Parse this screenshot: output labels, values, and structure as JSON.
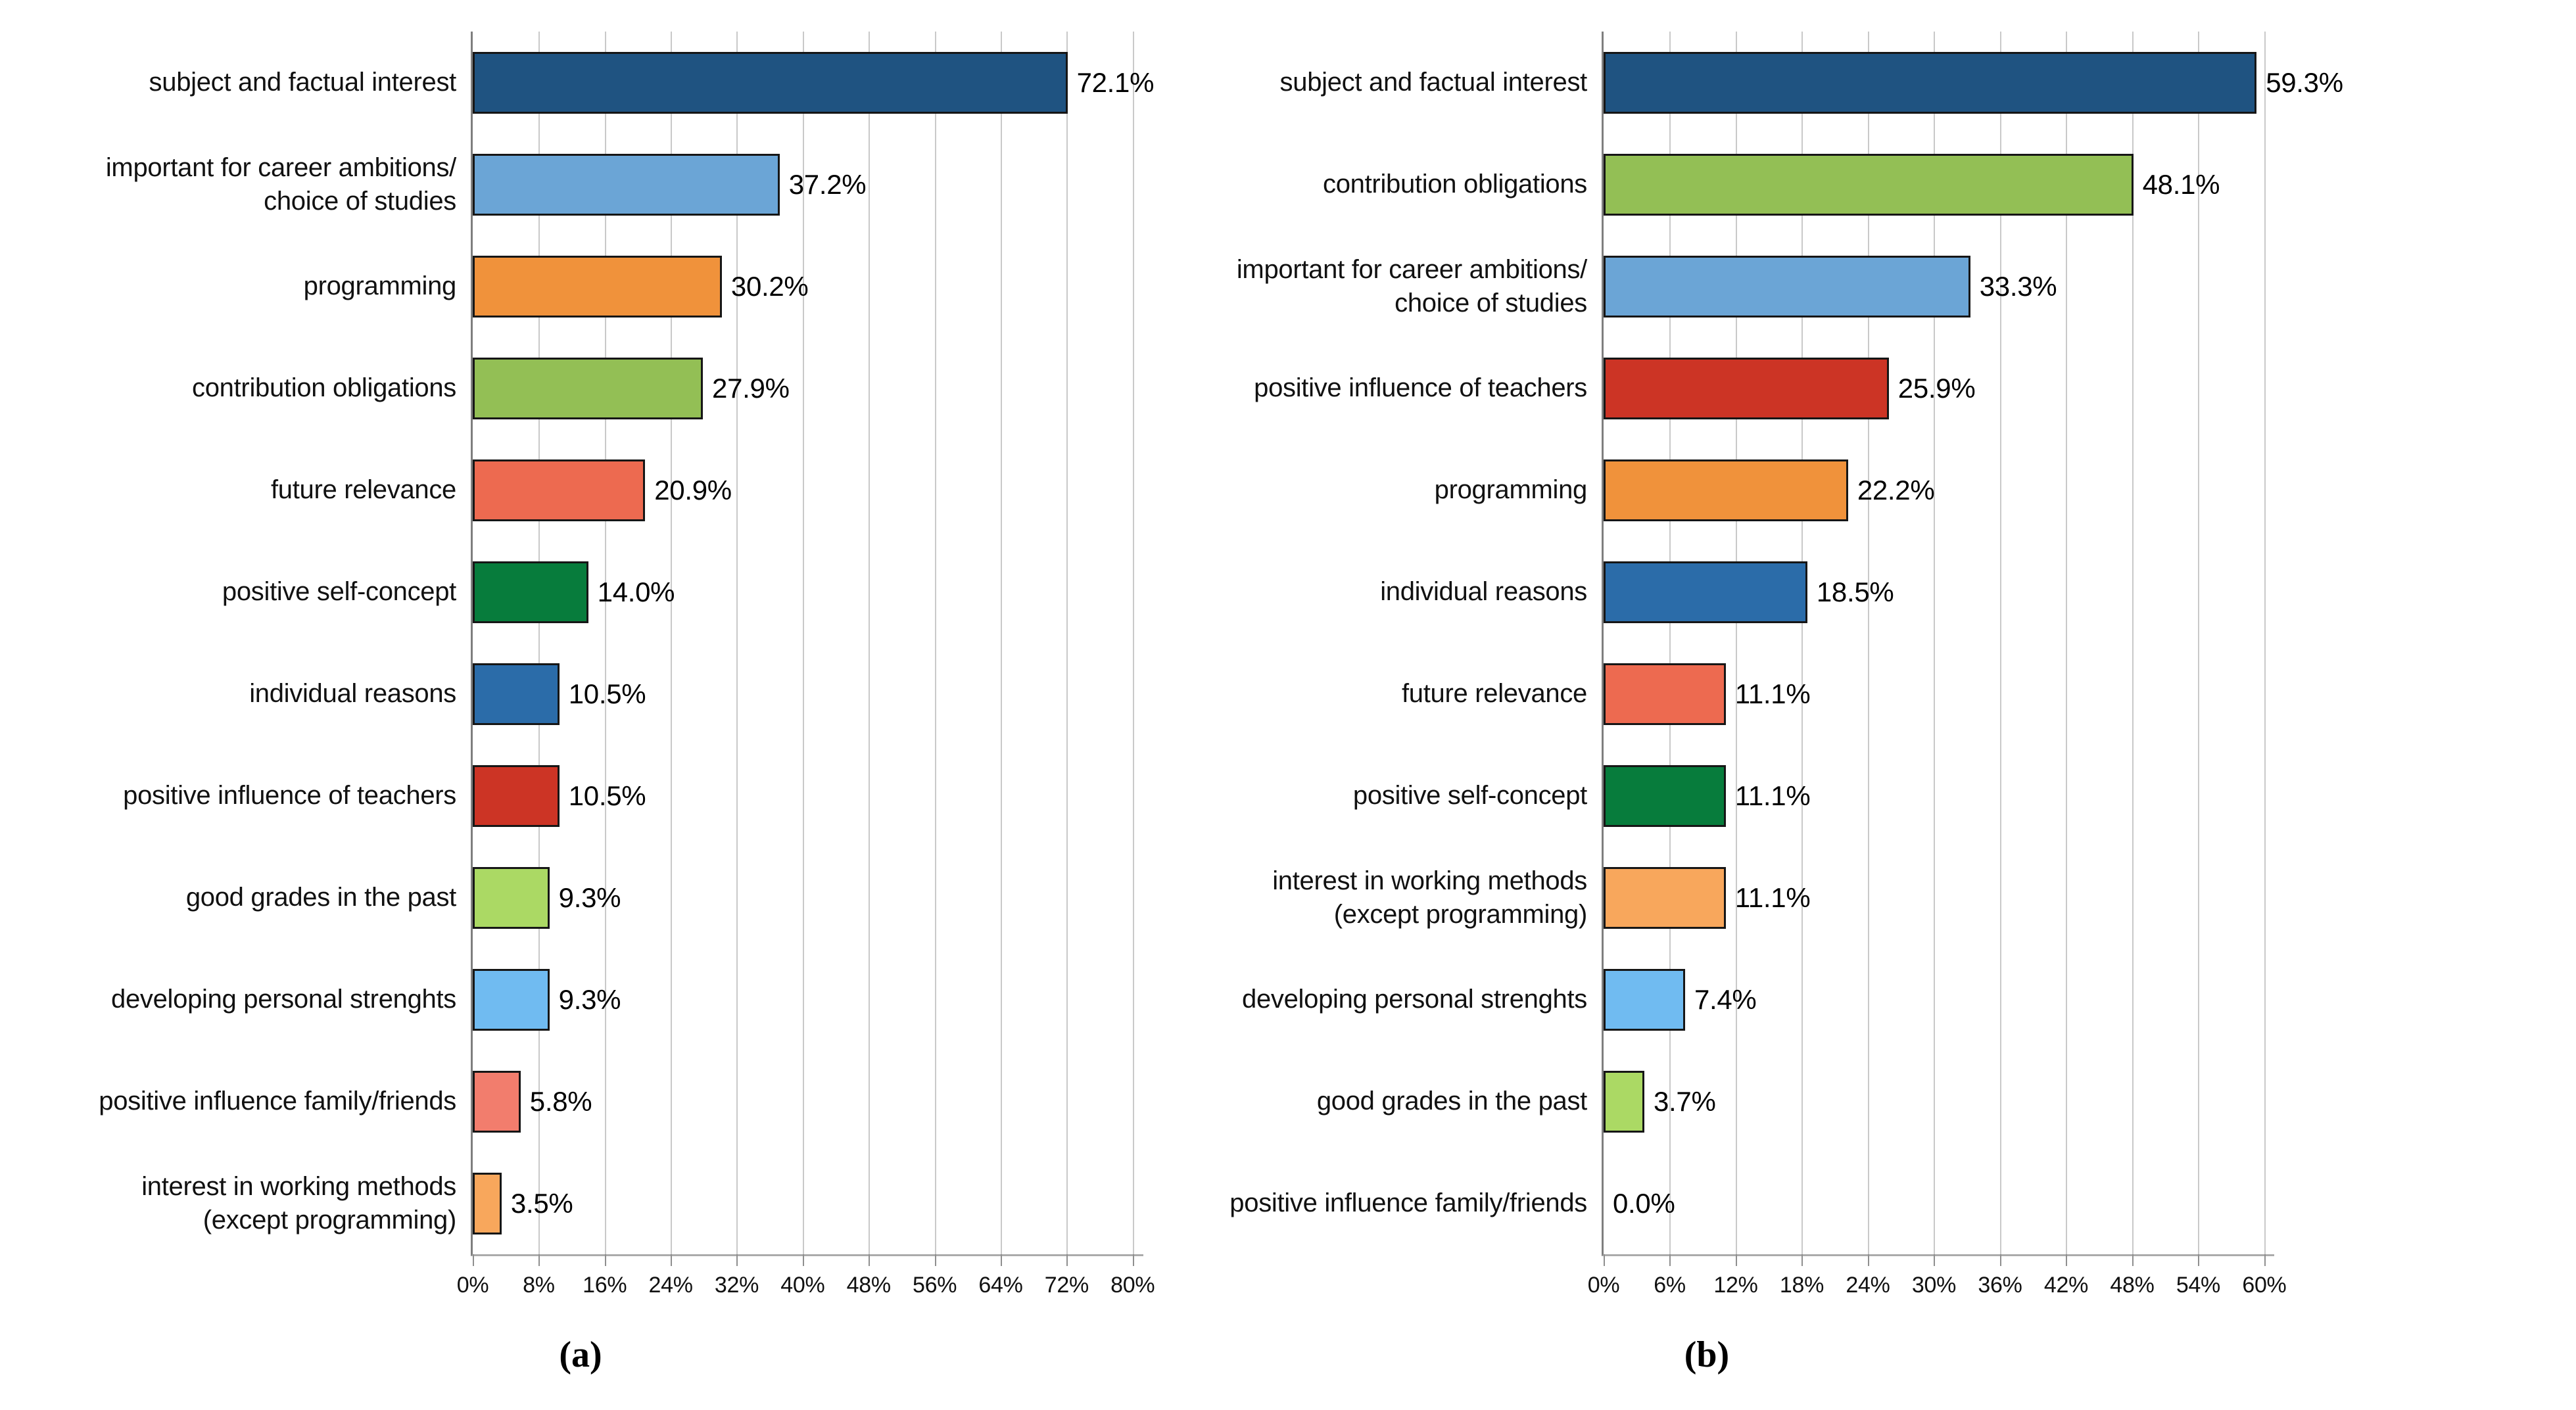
{
  "page": {
    "background": "#ffffff"
  },
  "palette": {
    "navy": "#1F5381",
    "steel_blue": "#6BA5D6",
    "orange": "#F0923B",
    "yellow_green": "#93BF55",
    "salmon": "#ED6A50",
    "dark_green": "#077C3C",
    "medium_blue": "#2B6CA9",
    "red": "#CC3425",
    "light_green": "#ABD964",
    "bright_blue": "#70BBF1",
    "light_salmon": "#F27D6D",
    "light_orange": "#F8A75C"
  },
  "chart_data": [
    {
      "type": "bar",
      "orientation": "horizontal",
      "title": "",
      "caption": "(a)",
      "xlabel": "",
      "ylabel": "",
      "grid": true,
      "legend": false,
      "xlim": [
        0,
        81.3
      ],
      "ticks": [
        0,
        8,
        16,
        24,
        32,
        40,
        48,
        56,
        64,
        72,
        80
      ],
      "tick_labels": [
        "0%",
        "8%",
        "16%",
        "24%",
        "32%",
        "40%",
        "48%",
        "56%",
        "64%",
        "72%",
        "80%"
      ],
      "categories": [
        "subject and factual interest",
        "important for career ambitions/\nchoice of studies",
        "programming",
        "contribution obligations",
        "future relevance",
        "positive self-concept",
        "individual reasons",
        "positive influence of teachers",
        "good grades in the past",
        "developing personal strenghts",
        "positive influence family/friends",
        "interest in working methods\n(except programming)"
      ],
      "values": [
        72.1,
        37.2,
        30.2,
        27.9,
        20.9,
        14.0,
        10.5,
        10.5,
        9.3,
        9.3,
        5.8,
        3.5
      ],
      "data_labels": [
        "72.1%",
        "37.2%",
        "30.2%",
        "27.9%",
        "20.9%",
        "14.0%",
        "10.5%",
        "10.5%",
        "9.3%",
        "9.3%",
        "5.8%",
        "3.5%"
      ],
      "bar_colors": [
        "#1F5381",
        "#6BA5D6",
        "#F0923B",
        "#93BF55",
        "#ED6A50",
        "#077C3C",
        "#2B6CA9",
        "#CC3425",
        "#ABD964",
        "#70BBF1",
        "#F27D6D",
        "#F8A75C"
      ],
      "bar_border_color": "#161616",
      "gridline_color": "#C9C9C9",
      "axis_color": "#7F7F7F"
    },
    {
      "type": "bar",
      "orientation": "horizontal",
      "title": "",
      "caption": "(b)",
      "xlabel": "",
      "ylabel": "",
      "grid": true,
      "legend": false,
      "xlim": [
        0,
        60.9
      ],
      "ticks": [
        0,
        6,
        12,
        18,
        24,
        30,
        36,
        42,
        48,
        54,
        60
      ],
      "tick_labels": [
        "0%",
        "6%",
        "12%",
        "18%",
        "24%",
        "30%",
        "36%",
        "42%",
        "48%",
        "54%",
        "60%"
      ],
      "categories": [
        "subject and factual interest",
        "contribution obligations",
        "important for career ambitions/\nchoice of studies",
        "positive influence of teachers",
        "programming",
        "individual reasons",
        "future relevance",
        "positive self-concept",
        "interest in working methods\n(except programming)",
        "developing personal strenghts",
        "good grades in the past",
        "positive influence family/friends"
      ],
      "values": [
        59.3,
        48.1,
        33.3,
        25.9,
        22.2,
        18.5,
        11.1,
        11.1,
        11.1,
        7.4,
        3.7,
        0.0
      ],
      "data_labels": [
        "59.3%",
        "48.1%",
        "33.3%",
        "25.9%",
        "22.2%",
        "18.5%",
        "11.1%",
        "11.1%",
        "11.1%",
        "7.4%",
        "3.7%",
        "0.0%"
      ],
      "bar_colors": [
        "#1F5381",
        "#93BF55",
        "#6BA5D6",
        "#CC3425",
        "#F0923B",
        "#2B6CA9",
        "#ED6A50",
        "#077C3C",
        "#F8A75C",
        "#70BBF1",
        "#ABD964",
        "#F27D6D"
      ],
      "bar_border_color": "#161616",
      "gridline_color": "#C9C9C9",
      "axis_color": "#7F7F7F"
    }
  ]
}
